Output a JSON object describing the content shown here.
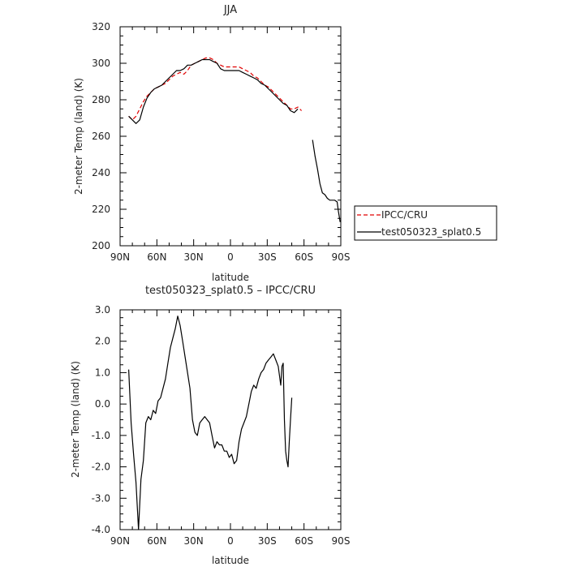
{
  "chart_data": [
    {
      "type": "line",
      "title": "JJA",
      "xlabel": "latitude",
      "ylabel": "2-meter Temp (land) (K)",
      "xlim": [
        90,
        -90
      ],
      "ylim": [
        200,
        320
      ],
      "xticks": [
        90,
        60,
        30,
        0,
        -30,
        -60,
        -90
      ],
      "xticklabels": [
        "90N",
        "60N",
        "30N",
        "0",
        "30S",
        "60S",
        "90S"
      ],
      "yticks": [
        200,
        220,
        240,
        260,
        280,
        300,
        320
      ],
      "yticklabels": [
        "200",
        "220",
        "240",
        "260",
        "280",
        "300",
        "320"
      ],
      "grid": false,
      "legend": "right",
      "series": [
        {
          "name": "IPCC/CRU",
          "color": "#e00000",
          "style": "dashed",
          "segments": [
            [
              [
                83,
                271
              ],
              [
                80,
                269
              ],
              [
                77,
                271
              ],
              [
                74,
                275
              ],
              [
                71,
                279
              ],
              [
                68,
                282
              ],
              [
                65,
                284
              ],
              [
                62,
                286
              ],
              [
                59,
                287
              ],
              [
                56,
                288
              ],
              [
                53,
                289
              ],
              [
                50,
                291
              ],
              [
                47,
                293
              ],
              [
                44,
                294
              ],
              [
                41,
                295
              ],
              [
                38,
                294
              ],
              [
                35,
                296
              ],
              [
                32,
                299
              ],
              [
                29,
                300
              ],
              [
                26,
                301
              ],
              [
                23,
                302
              ],
              [
                20,
                303
              ],
              [
                17,
                303
              ],
              [
                14,
                302
              ],
              [
                11,
                300
              ],
              [
                8,
                299
              ],
              [
                5,
                298
              ],
              [
                2,
                298
              ],
              [
                -1,
                298
              ],
              [
                -4,
                298
              ],
              [
                -7,
                298
              ],
              [
                -10,
                297
              ],
              [
                -13,
                296
              ],
              [
                -16,
                295
              ],
              [
                -19,
                293
              ],
              [
                -22,
                292
              ],
              [
                -25,
                290
              ],
              [
                -28,
                288
              ],
              [
                -31,
                287
              ],
              [
                -34,
                285
              ],
              [
                -37,
                283
              ],
              [
                -40,
                281
              ],
              [
                -43,
                279
              ],
              [
                -46,
                277
              ],
              [
                -49,
                275
              ],
              [
                -52,
                275
              ],
              [
                -55,
                276
              ],
              [
                -58,
                274
              ]
            ]
          ]
        },
        {
          "name": "test050323_splat0.5",
          "color": "#000000",
          "style": "solid",
          "segments": [
            [
              [
                83,
                271
              ],
              [
                80,
                269
              ],
              [
                77,
                267
              ],
              [
                74,
                269
              ],
              [
                71,
                276
              ],
              [
                68,
                281
              ],
              [
                65,
                284
              ],
              [
                62,
                286
              ],
              [
                59,
                287
              ],
              [
                56,
                288
              ],
              [
                53,
                290
              ],
              [
                50,
                292
              ],
              [
                47,
                294
              ],
              [
                44,
                296
              ],
              [
                41,
                296
              ],
              [
                38,
                297
              ],
              [
                35,
                299
              ],
              [
                32,
                299
              ],
              [
                29,
                300
              ],
              [
                26,
                301
              ],
              [
                23,
                302
              ],
              [
                20,
                302
              ],
              [
                17,
                302
              ],
              [
                14,
                301
              ],
              [
                11,
                300
              ],
              [
                8,
                297
              ],
              [
                5,
                296
              ],
              [
                2,
                296
              ],
              [
                -1,
                296
              ],
              [
                -4,
                296
              ],
              [
                -7,
                296
              ],
              [
                -10,
                295
              ],
              [
                -13,
                294
              ],
              [
                -16,
                293
              ],
              [
                -19,
                292
              ],
              [
                -22,
                291
              ],
              [
                -25,
                289
              ],
              [
                -28,
                288
              ],
              [
                -31,
                286
              ],
              [
                -34,
                284
              ],
              [
                -37,
                282
              ],
              [
                -40,
                280
              ],
              [
                -43,
                278
              ],
              [
                -46,
                277
              ],
              [
                -49,
                274
              ],
              [
                -52,
                273
              ],
              [
                -55,
                275
              ]
            ],
            [
              [
                -67,
                258
              ],
              [
                -69,
                249
              ],
              [
                -71,
                242
              ],
              [
                -73,
                234
              ],
              [
                -75,
                229
              ],
              [
                -77,
                228
              ],
              [
                -79,
                226
              ],
              [
                -81,
                225
              ],
              [
                -83,
                225
              ],
              [
                -85,
                225
              ],
              [
                -87,
                224
              ],
              [
                -88,
                219
              ],
              [
                -89.5,
                213
              ]
            ]
          ]
        }
      ]
    },
    {
      "type": "line",
      "title": "test050323_splat0.5 – IPCC/CRU",
      "xlabel": "latitude",
      "ylabel": "2-meter Temp (land) (K)",
      "xlim": [
        90,
        -90
      ],
      "ylim": [
        -4.0,
        3.0
      ],
      "xticks": [
        90,
        60,
        30,
        0,
        -30,
        -60,
        -90
      ],
      "xticklabels": [
        "90N",
        "60N",
        "30N",
        "0",
        "30S",
        "60S",
        "90S"
      ],
      "yticks": [
        -4,
        -3,
        -2,
        -1,
        0,
        1,
        2,
        3
      ],
      "yticklabels": [
        "-4.0",
        "-3.0",
        "-2.0",
        "-1.0",
        "0.0",
        "1.0",
        "2.0",
        "3.0"
      ],
      "grid": false,
      "series": [
        {
          "color": "#000000",
          "style": "solid",
          "segments": [
            [
              [
                83,
                1.1
              ],
              [
                81,
                -0.6
              ],
              [
                79,
                -1.6
              ],
              [
                77,
                -2.5
              ],
              [
                75,
                -4.0
              ],
              [
                73,
                -2.4
              ],
              [
                71,
                -1.8
              ],
              [
                69,
                -0.6
              ],
              [
                67,
                -0.4
              ],
              [
                65,
                -0.5
              ],
              [
                63,
                -0.2
              ],
              [
                61,
                -0.3
              ],
              [
                59,
                0.1
              ],
              [
                57,
                0.2
              ],
              [
                55,
                0.5
              ],
              [
                53,
                0.8
              ],
              [
                51,
                1.3
              ],
              [
                49,
                1.8
              ],
              [
                47,
                2.1
              ],
              [
                45,
                2.4
              ],
              [
                43,
                2.8
              ],
              [
                41,
                2.5
              ],
              [
                39,
                2.0
              ],
              [
                37,
                1.5
              ],
              [
                35,
                1.0
              ],
              [
                33,
                0.5
              ],
              [
                31,
                -0.5
              ],
              [
                29,
                -0.9
              ],
              [
                27,
                -1.0
              ],
              [
                25,
                -0.6
              ],
              [
                23,
                -0.5
              ],
              [
                21,
                -0.4
              ],
              [
                19,
                -0.5
              ],
              [
                17,
                -0.6
              ],
              [
                15,
                -1.0
              ],
              [
                13,
                -1.4
              ],
              [
                11,
                -1.2
              ],
              [
                9,
                -1.3
              ],
              [
                7,
                -1.3
              ],
              [
                5,
                -1.5
              ],
              [
                3,
                -1.5
              ],
              [
                1,
                -1.7
              ],
              [
                -1,
                -1.6
              ],
              [
                -3,
                -1.9
              ],
              [
                -5,
                -1.8
              ],
              [
                -7,
                -1.2
              ],
              [
                -9,
                -0.8
              ],
              [
                -11,
                -0.6
              ],
              [
                -13,
                -0.4
              ],
              [
                -15,
                0.0
              ],
              [
                -17,
                0.4
              ],
              [
                -19,
                0.6
              ],
              [
                -21,
                0.5
              ],
              [
                -23,
                0.8
              ],
              [
                -25,
                1.0
              ],
              [
                -27,
                1.1
              ],
              [
                -29,
                1.3
              ],
              [
                -31,
                1.4
              ],
              [
                -33,
                1.5
              ],
              [
                -35,
                1.6
              ],
              [
                -37,
                1.4
              ],
              [
                -39,
                1.2
              ],
              [
                -41,
                0.6
              ],
              [
                -42,
                1.2
              ],
              [
                -43,
                1.3
              ],
              [
                -44,
                -0.5
              ],
              [
                -45,
                -1.5
              ],
              [
                -46,
                -1.8
              ],
              [
                -47,
                -2.0
              ],
              [
                -48,
                -1.2
              ],
              [
                -49,
                -0.5
              ],
              [
                -50,
                0.2
              ]
            ]
          ]
        }
      ]
    }
  ]
}
